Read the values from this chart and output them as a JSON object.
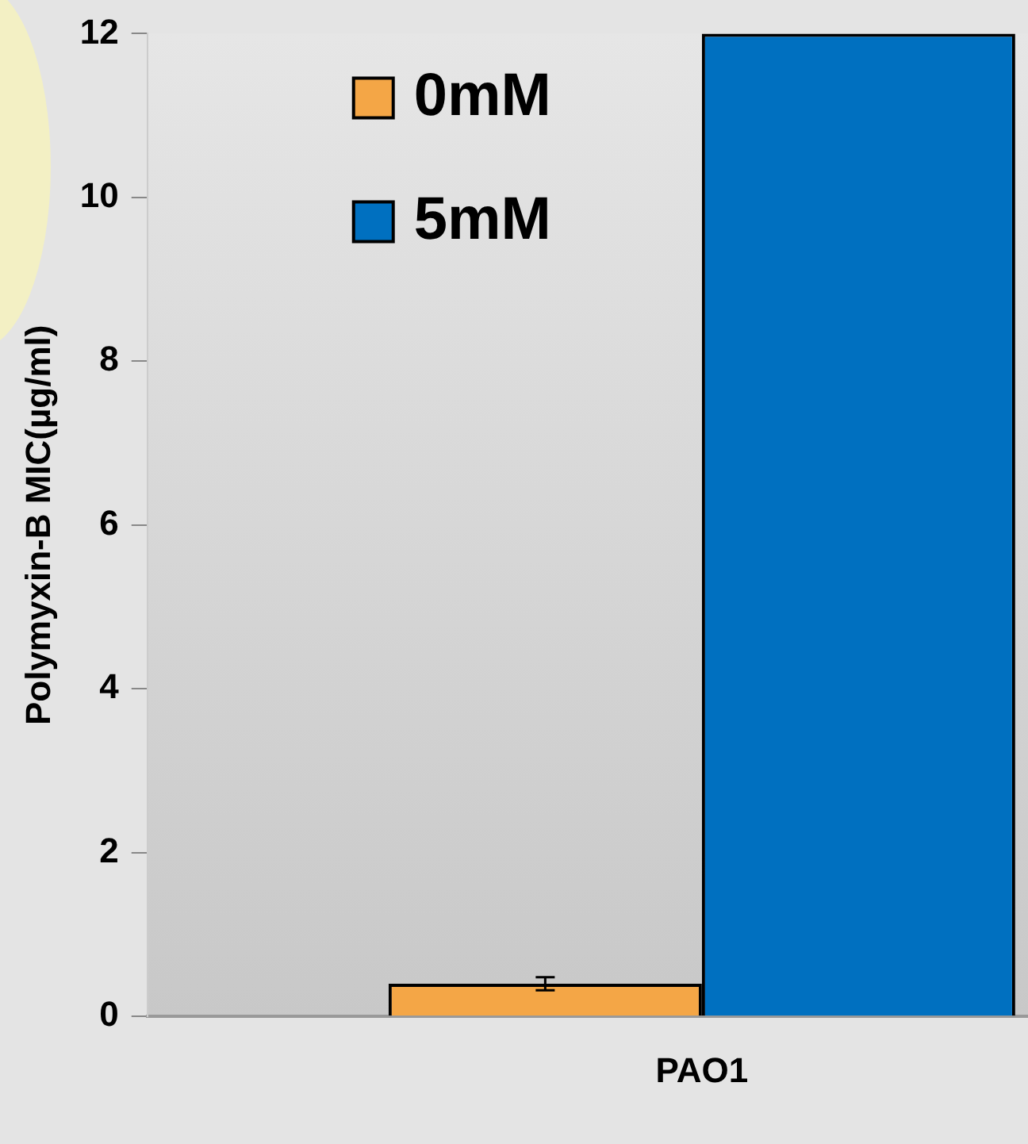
{
  "chart_data": {
    "type": "bar",
    "ylabel": "Polymyxin-B MIC(µg/ml)",
    "categories": [
      "PAO1"
    ],
    "series": [
      {
        "name": "0mM",
        "color": "#f4a646",
        "values": [
          0.4
        ],
        "errors": [
          0.08
        ]
      },
      {
        "name": "5mM",
        "color": "#0070c0",
        "values": [
          12
        ]
      }
    ],
    "ylim": [
      0,
      12
    ],
    "yticks": [
      0,
      2,
      4,
      6,
      8,
      10,
      12
    ],
    "grid": false,
    "legend": "top left"
  }
}
